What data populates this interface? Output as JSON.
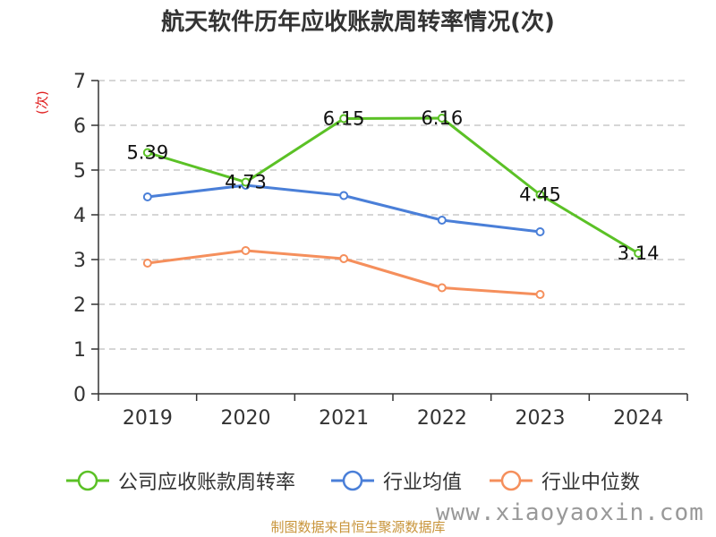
{
  "title": "航天软件历年应收账款周转率情况(次)",
  "source_text": "制图数据来自恒生聚源数据库",
  "watermark": "www.xiaoyaoxin.com",
  "colors": {
    "company": "#5bc126",
    "industry_avg": "#4a7fd8",
    "industry_median": "#f58f5c",
    "grid": "#c8c8c8",
    "axis": "#333333",
    "ylabel": "#e02020"
  },
  "chart_data": {
    "type": "line",
    "title": "航天软件历年应收账款周转率情况(次)",
    "ylabel": "(次)",
    "xlabel": "",
    "categories": [
      "2019",
      "2020",
      "2021",
      "2022",
      "2023",
      "2024"
    ],
    "ylim": [
      0,
      7
    ],
    "yticks": [
      0,
      1,
      2,
      3,
      4,
      5,
      6,
      7
    ],
    "grid": true,
    "legend_position": "bottom",
    "series": [
      {
        "name": "公司应收账款周转率",
        "color": "#5bc126",
        "values": [
          5.39,
          4.73,
          6.15,
          6.16,
          4.45,
          3.14
        ],
        "data_labels": [
          "5.39",
          "4.73",
          "6.15",
          "6.16",
          "4.45",
          "3.14"
        ]
      },
      {
        "name": "行业均值",
        "color": "#4a7fd8",
        "values": [
          4.4,
          4.66,
          4.43,
          3.88,
          3.62,
          null
        ]
      },
      {
        "name": "行业中位数",
        "color": "#f58f5c",
        "values": [
          2.92,
          3.2,
          3.02,
          2.37,
          2.22,
          null
        ]
      }
    ]
  }
}
